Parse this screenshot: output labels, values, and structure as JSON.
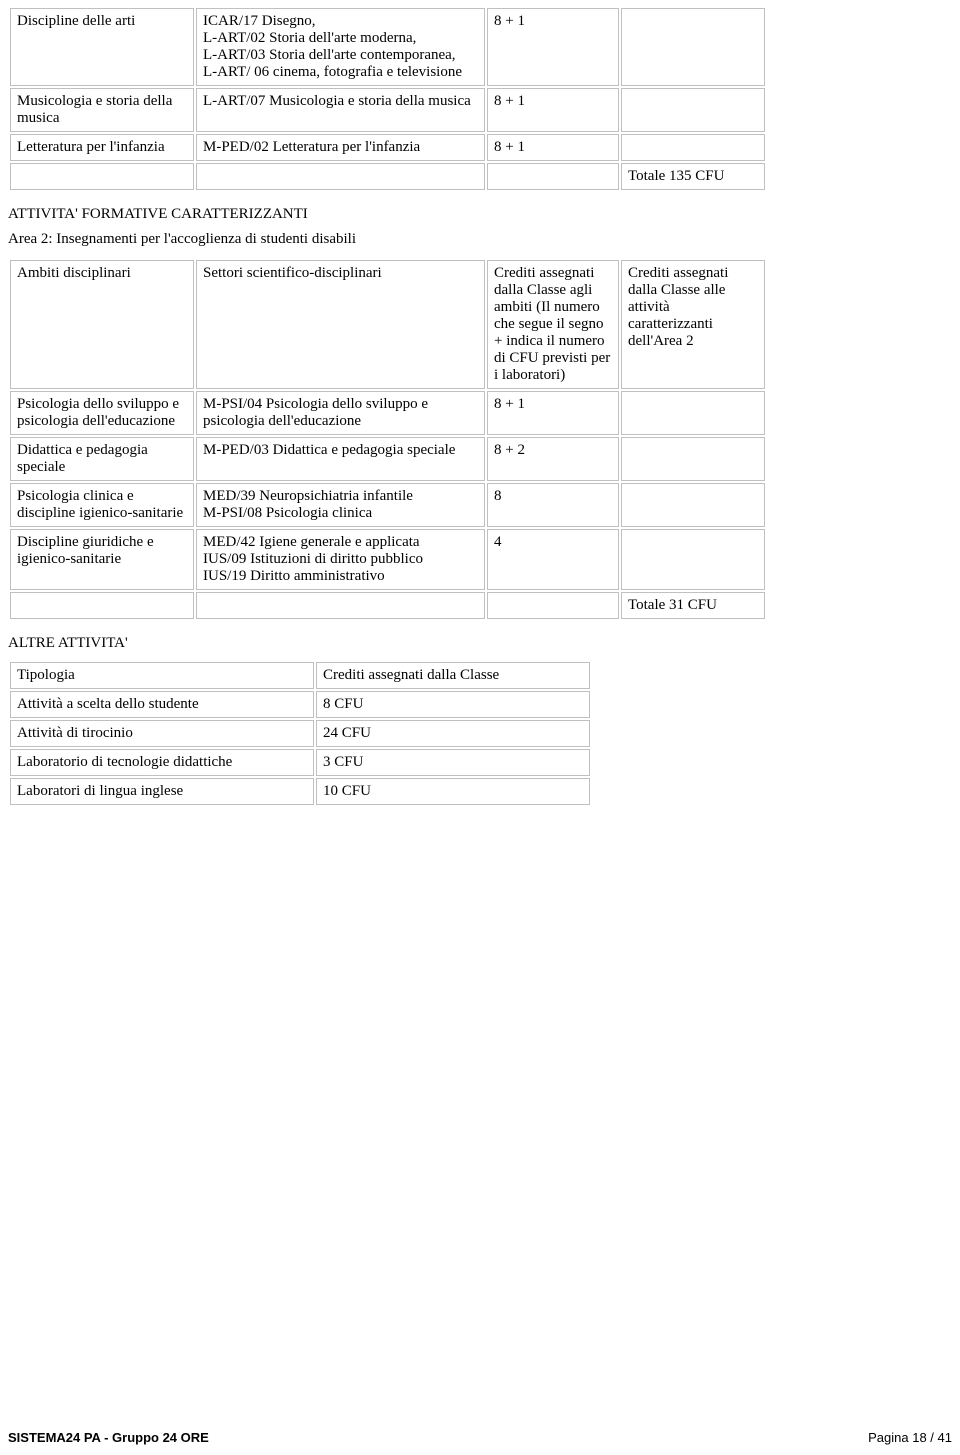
{
  "colors": {
    "border": "#c0c0c0",
    "text": "#000000",
    "background": "#ffffff"
  },
  "font_body_pt": 11,
  "font_footer_pt": 10,
  "table1": {
    "rows": [
      {
        "col1": "Discipline delle arti",
        "col2": "ICAR/17 Disegno,\nL-ART/02 Storia dell'arte moderna,\nL-ART/03 Storia dell'arte contemporanea,\nL-ART/ 06 cinema, fotografia e televisione",
        "col3": "8 + 1",
        "col4": ""
      },
      {
        "col1": "Musicologia e storia della musica",
        "col2": "L-ART/07 Musicologia e storia della musica",
        "col3": "8 + 1",
        "col4": ""
      },
      {
        "col1": "Letteratura per l'infanzia",
        "col2": "M-PED/02 Letteratura per l'infanzia",
        "col3": "8 + 1",
        "col4": ""
      },
      {
        "col1": "",
        "col2": "",
        "col3": "",
        "col4": "Totale 135 CFU"
      }
    ]
  },
  "section1_heading": "ATTIVITA' FORMATIVE CARATTERIZZANTI",
  "section1_sub": "Area 2: Insegnamenti per l'accoglienza di studenti disabili",
  "table2": {
    "rows": [
      {
        "col1": "Ambiti disciplinari",
        "col2": "Settori scientifico-disciplinari",
        "col3": "Crediti assegnati dalla Classe agli ambiti (Il numero che segue il segno + indica il numero di CFU previsti per i laboratori)",
        "col4": "Crediti assegnati dalla Classe alle attività caratterizzanti dell'Area 2"
      },
      {
        "col1": "Psicologia dello sviluppo e psicologia dell'educazione",
        "col2": "M-PSI/04 Psicologia dello sviluppo e psicologia dell'educazione",
        "col3": "8 + 1",
        "col4": ""
      },
      {
        "col1": "Didattica e pedagogia speciale",
        "col2": "M-PED/03 Didattica e pedagogia speciale",
        "col3": "8 + 2",
        "col4": ""
      },
      {
        "col1": "Psicologia clinica e discipline igienico-sanitarie",
        "col2": "MED/39 Neuropsichiatria infantile\nM-PSI/08 Psicologia clinica",
        "col3": "8",
        "col4": ""
      },
      {
        "col1": "Discipline giuridiche e igienico-sanitarie",
        "col2": "MED/42 Igiene generale e applicata\nIUS/09 Istituzioni di diritto pubblico\nIUS/19 Diritto amministrativo",
        "col3": "4",
        "col4": ""
      },
      {
        "col1": "",
        "col2": "",
        "col3": "",
        "col4": "Totale 31 CFU"
      }
    ]
  },
  "section2_heading": "ALTRE ATTIVITA'",
  "table3": {
    "rows": [
      {
        "col1": "Tipologia",
        "col2": "Crediti assegnati dalla Classe"
      },
      {
        "col1": "Attività a scelta dello studente",
        "col2": "8 CFU"
      },
      {
        "col1": "Attività di tirocinio",
        "col2": "24 CFU"
      },
      {
        "col1": "Laboratorio di tecnologie didattiche",
        "col2": "3 CFU"
      },
      {
        "col1": "Laboratori di lingua inglese",
        "col2": "10 CFU"
      }
    ]
  },
  "footer": {
    "left": "SISTEMA24 PA - Gruppo 24 ORE",
    "right": "Pagina 18 / 41"
  }
}
